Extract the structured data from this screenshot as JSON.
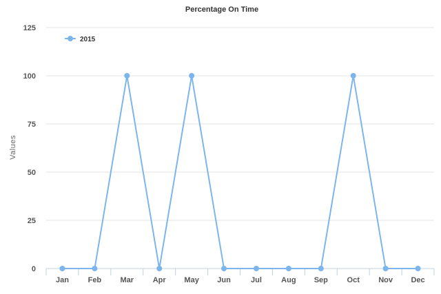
{
  "chart_data": {
    "type": "line",
    "title": "Percentage On Time",
    "ylabel": "Values",
    "xlabel": "",
    "categories": [
      "Jan",
      "Feb",
      "Mar",
      "Apr",
      "May",
      "Jun",
      "Jul",
      "Aug",
      "Sep",
      "Oct",
      "Nov",
      "Dec"
    ],
    "series": [
      {
        "name": "2015",
        "values": [
          0,
          0,
          100,
          0,
          100,
          0,
          0,
          0,
          0,
          100,
          0,
          0
        ],
        "color": "#7cb5ec"
      }
    ],
    "ylim": [
      0,
      125
    ],
    "yticks": [
      0,
      25,
      50,
      75,
      100,
      125
    ],
    "grid": true,
    "legend_position": "top-left"
  }
}
